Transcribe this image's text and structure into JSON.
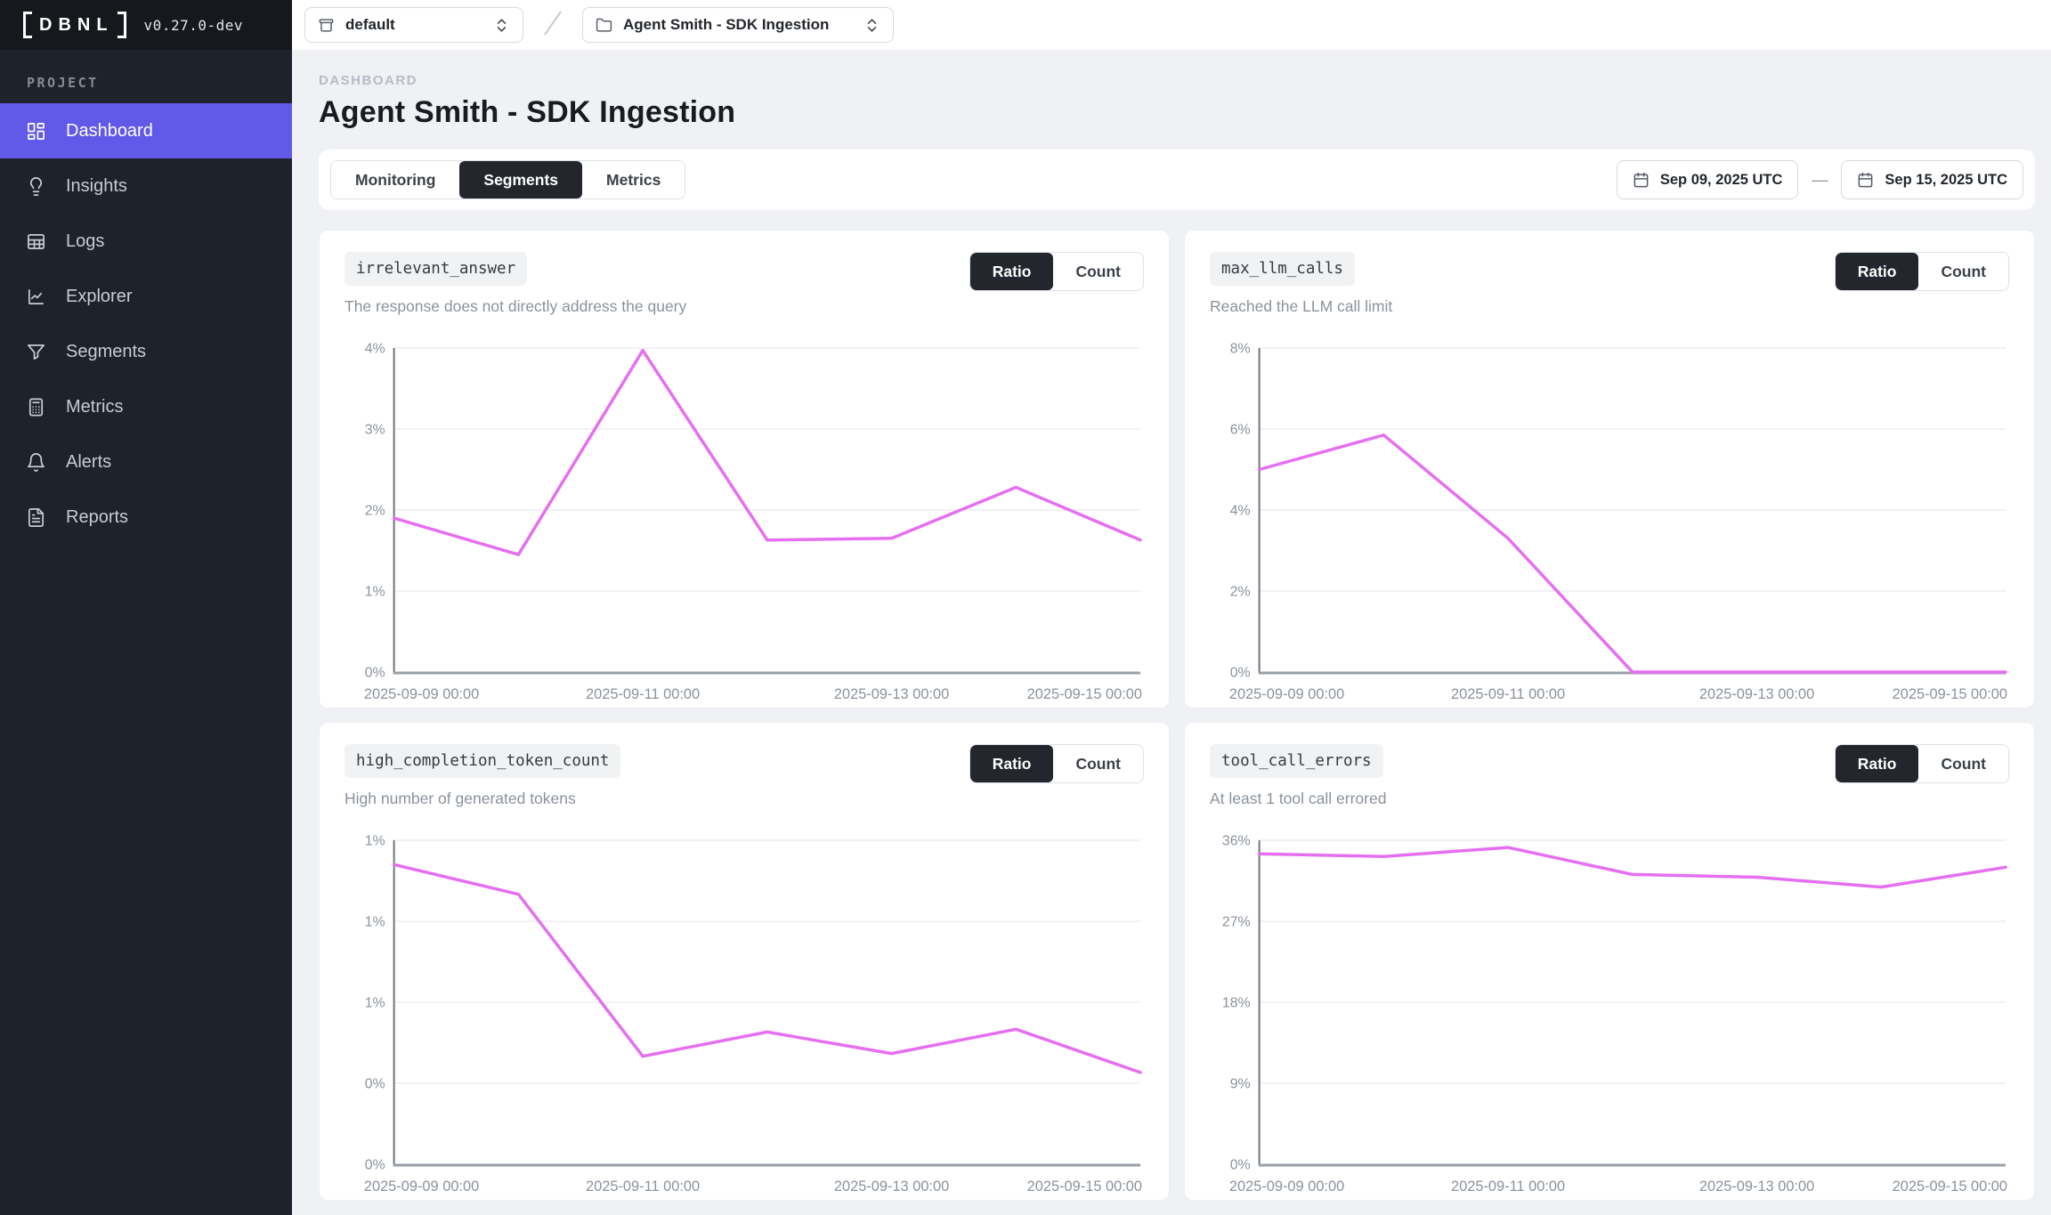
{
  "sidebar": {
    "logo_text": "DBNL",
    "version": "v0.27.0-dev",
    "section_label": "PROJECT",
    "items": [
      {
        "label": "Dashboard",
        "icon": "dashboard-grid-icon",
        "active": true
      },
      {
        "label": "Insights",
        "icon": "lightbulb-icon",
        "active": false
      },
      {
        "label": "Logs",
        "icon": "table-icon",
        "active": false
      },
      {
        "label": "Explorer",
        "icon": "line-chart-icon",
        "active": false
      },
      {
        "label": "Segments",
        "icon": "funnel-icon",
        "active": false
      },
      {
        "label": "Metrics",
        "icon": "calculator-icon",
        "active": false
      },
      {
        "label": "Alerts",
        "icon": "bell-icon",
        "active": false
      },
      {
        "label": "Reports",
        "icon": "report-icon",
        "active": false
      }
    ]
  },
  "topbar": {
    "org_selector": {
      "value": "default",
      "icon": "box-icon"
    },
    "project_selector": {
      "value": "Agent Smith - SDK Ingestion",
      "icon": "folder-icon"
    },
    "separator": "/"
  },
  "header": {
    "eyebrow": "DASHBOARD",
    "title": "Agent Smith - SDK Ingestion"
  },
  "tabs": [
    {
      "label": "Monitoring",
      "active": false
    },
    {
      "label": "Segments",
      "active": true
    },
    {
      "label": "Metrics",
      "active": false
    }
  ],
  "date_range": {
    "start": "Sep 09, 2025 UTC",
    "end": "Sep 15, 2025 UTC",
    "separator": "—"
  },
  "colors": {
    "accent": "#6159e8",
    "line": "#e56ff0",
    "active_dark": "#23262c",
    "grid": "#ebedf0",
    "axis_y": "#6d737d",
    "axis_x": "#9aa0a8",
    "tick_text": "#8b929c"
  },
  "cards": [
    {
      "name": "irrelevant_answer",
      "description": "The response does not directly address the query",
      "toggle": {
        "options": [
          "Ratio",
          "Count"
        ],
        "active": "Ratio"
      }
    },
    {
      "name": "max_llm_calls",
      "description": "Reached the LLM call limit",
      "toggle": {
        "options": [
          "Ratio",
          "Count"
        ],
        "active": "Ratio"
      }
    },
    {
      "name": "high_completion_token_count",
      "description": "High number of generated tokens",
      "toggle": {
        "options": [
          "Ratio",
          "Count"
        ],
        "active": "Ratio"
      }
    },
    {
      "name": "tool_call_errors",
      "description": "At least 1 tool call errored",
      "toggle": {
        "options": [
          "Ratio",
          "Count"
        ],
        "active": "Ratio"
      }
    }
  ],
  "chart_data": [
    {
      "type": "line",
      "metric": "irrelevant_answer",
      "unit": "%",
      "x": [
        "2025-09-09",
        "2025-09-10",
        "2025-09-11",
        "2025-09-12",
        "2025-09-13",
        "2025-09-14",
        "2025-09-15"
      ],
      "values": [
        1.9,
        1.45,
        3.97,
        1.63,
        1.65,
        2.28,
        1.63
      ],
      "ylim": [
        0,
        4
      ],
      "ytick_labels": [
        "4%",
        "3%",
        "2%",
        "1%",
        "0%"
      ],
      "xtick_labels": [
        "2025-09-09 00:00",
        "2025-09-11 00:00",
        "2025-09-13 00:00",
        "2025-09-15 00:00"
      ],
      "grid": true,
      "legend": "none"
    },
    {
      "type": "line",
      "metric": "max_llm_calls",
      "unit": "%",
      "x": [
        "2025-09-09",
        "2025-09-10",
        "2025-09-11",
        "2025-09-12",
        "2025-09-13",
        "2025-09-14",
        "2025-09-15"
      ],
      "values": [
        5.0,
        5.85,
        3.3,
        0,
        0,
        0,
        0
      ],
      "ylim": [
        0,
        8
      ],
      "ytick_labels": [
        "8%",
        "6%",
        "4%",
        "2%",
        "0%"
      ],
      "xtick_labels": [
        "2025-09-09 00:00",
        "2025-09-11 00:00",
        "2025-09-13 00:00",
        "2025-09-15 00:00"
      ],
      "grid": true,
      "legend": "none"
    },
    {
      "type": "line",
      "metric": "high_completion_token_count",
      "unit": "%",
      "x": [
        "2025-09-09",
        "2025-09-10",
        "2025-09-11",
        "2025-09-12",
        "2025-09-13",
        "2025-09-14",
        "2025-09-15"
      ],
      "values": [
        1.11,
        1.0,
        0.4,
        0.49,
        0.41,
        0.5,
        0.34
      ],
      "ylim": [
        0,
        1.2
      ],
      "ytick_labels": [
        "1%",
        "1%",
        "1%",
        "0%",
        "0%"
      ],
      "xtick_labels": [
        "2025-09-09 00:00",
        "2025-09-11 00:00",
        "2025-09-13 00:00",
        "2025-09-15 00:00"
      ],
      "grid": true,
      "legend": "none"
    },
    {
      "type": "line",
      "metric": "tool_call_errors",
      "unit": "%",
      "x": [
        "2025-09-09",
        "2025-09-10",
        "2025-09-11",
        "2025-09-12",
        "2025-09-13",
        "2025-09-14",
        "2025-09-15"
      ],
      "values": [
        34.5,
        34.2,
        35.2,
        32.2,
        31.9,
        30.8,
        33.0
      ],
      "ylim": [
        0,
        36
      ],
      "ytick_labels": [
        "36%",
        "27%",
        "18%",
        "9%",
        "0%"
      ],
      "xtick_labels": [
        "2025-09-09 00:00",
        "2025-09-11 00:00",
        "2025-09-13 00:00",
        "2025-09-15 00:00"
      ],
      "grid": true,
      "legend": "none"
    }
  ]
}
